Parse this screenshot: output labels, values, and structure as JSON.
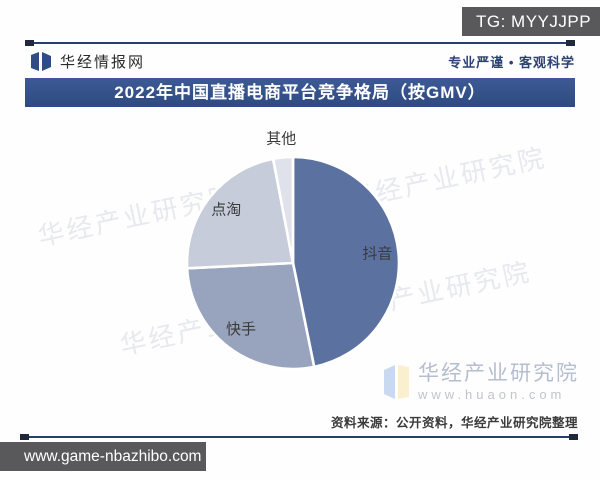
{
  "overlay": {
    "tg_badge": "TG: MYYJJPP",
    "site_badge": "www.game-nbazhibo.com"
  },
  "header": {
    "brand": "华经情报网",
    "slogan": "专业严谨 • 客观科学"
  },
  "banner": {
    "title": "2022年中国直播电商平台竞争格局（按GMV）"
  },
  "chart_data": {
    "type": "pie",
    "title": "2022年中国直播电商平台竞争格局（按GMV）",
    "unit": "share of GMV, %",
    "direction": "clockwise",
    "start_angle_deg": 0,
    "labels_shown": "category-names-only",
    "segments": [
      {
        "id": "douyin",
        "label": "抖音",
        "value": 46.8,
        "color": "#5b72a1"
      },
      {
        "id": "kuaishou",
        "label": "快手",
        "value": 27.4,
        "color": "#98a3bd"
      },
      {
        "id": "diantao",
        "label": "点淘",
        "value": 22.8,
        "color": "#c6ccd9"
      },
      {
        "id": "qita",
        "label": "其他",
        "value": 3.0,
        "color": "#dfe2ea"
      }
    ]
  },
  "watermark": {
    "text": "华经产业研究院"
  },
  "huaon_logo": {
    "name": "华经产业研究院",
    "url": "www.huaon.com"
  },
  "footer": {
    "source_note": "资料来源：公开资料，华经产业研究院整理"
  },
  "colors": {
    "banner_bg": "#35538f",
    "rule": "#24406f",
    "badge_bg": "#59595b",
    "slice_gap": "#ffffff"
  }
}
